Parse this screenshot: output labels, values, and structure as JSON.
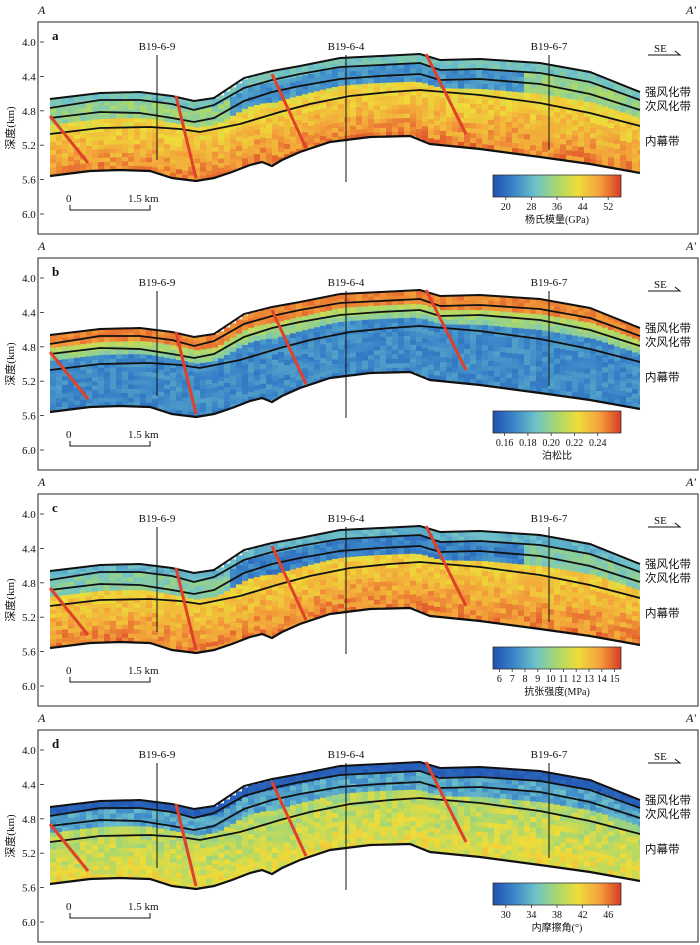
{
  "corner_labels": {
    "left": "A",
    "right": "A′"
  },
  "direction": "SE",
  "yaxis": {
    "label": "深度(km)",
    "ticks": [
      "4.0",
      "4.4",
      "4.8",
      "5.2",
      "5.6",
      "6.0"
    ],
    "ylim": [
      4.0,
      6.0
    ]
  },
  "wells": [
    "B19-6-9",
    "B19-6-4",
    "B19-6-7"
  ],
  "zones": [
    "强风化带",
    "次风化带",
    "内幕带"
  ],
  "scalebar": {
    "start": "0",
    "end": "1.5 km"
  },
  "colors": {
    "fault": "#e0412a",
    "ramp": [
      "#1f4fb0",
      "#3b87c9",
      "#6fc2c9",
      "#a9d86e",
      "#eedc3a",
      "#f3a23a",
      "#d93a26"
    ]
  },
  "chart_data": [
    {
      "type": "heatmap",
      "panel": "a",
      "colorbar": {
        "ticks": [
          "20",
          "28",
          "36",
          "44",
          "52"
        ],
        "label": "杨氏模量(GPa)",
        "range": [
          16,
          56
        ]
      }
    },
    {
      "type": "heatmap",
      "panel": "b",
      "colorbar": {
        "ticks": [
          "0.16",
          "0.18",
          "0.20",
          "0.22",
          "0.24"
        ],
        "label": "泊松比",
        "range": [
          0.15,
          0.26
        ]
      }
    },
    {
      "type": "heatmap",
      "panel": "c",
      "colorbar": {
        "ticks": [
          "6",
          "7",
          "8",
          "9",
          "10",
          "11",
          "12",
          "13",
          "14",
          "15"
        ],
        "label": "抗张强度(MPa)",
        "range": [
          5.5,
          15.5
        ]
      }
    },
    {
      "type": "heatmap",
      "panel": "d",
      "colorbar": {
        "ticks": [
          "30",
          "34",
          "38",
          "42",
          "46"
        ],
        "label": "内摩擦角(°)",
        "range": [
          28,
          48
        ]
      }
    }
  ]
}
